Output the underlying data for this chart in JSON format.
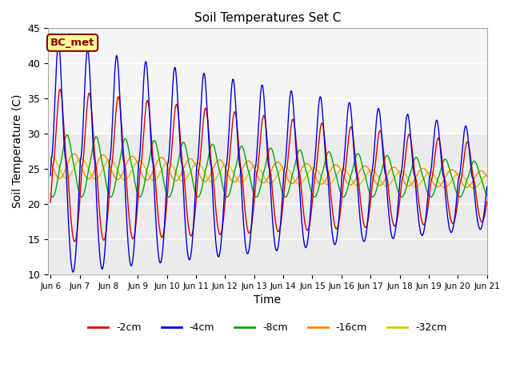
{
  "title": "Soil Temperatures Set C",
  "xlabel": "Time",
  "ylabel": "Soil Temperature (C)",
  "ylim": [
    10,
    45
  ],
  "xlim_start": -2,
  "xlim_end": 360,
  "plot_bg_color": "#ebebeb",
  "label_box_text": "BC_met",
  "label_box_facecolor": "#ffff99",
  "label_box_edgecolor": "#8b0000",
  "series_keys": [
    "cm2",
    "cm4",
    "cm8",
    "cm16",
    "cm32"
  ],
  "series": {
    "cm2": {
      "label": "-2cm",
      "color": "#dd0000"
    },
    "cm4": {
      "label": "-4cm",
      "color": "#0000dd"
    },
    "cm8": {
      "label": "-8cm",
      "color": "#00aa00"
    },
    "cm16": {
      "label": "-16cm",
      "color": "#ff8800"
    },
    "cm32": {
      "label": "-32cm",
      "color": "#cccc00"
    }
  },
  "xtick_labels": [
    "Jun 6",
    "Jun 7",
    "Jun 8",
    "Jun 9",
    "Jun 10",
    "Jun 11",
    "Jun 12",
    "Jun 13",
    "Jun 14",
    "Jun 15",
    "Jun 16",
    "Jun 17",
    "Jun 18",
    "Jun 19",
    "Jun 20",
    "Jun 21"
  ],
  "xtick_positions": [
    0,
    24,
    48,
    72,
    96,
    120,
    144,
    168,
    192,
    216,
    240,
    264,
    288,
    312,
    336,
    360
  ],
  "hours_total": 360,
  "n_points": 3600
}
